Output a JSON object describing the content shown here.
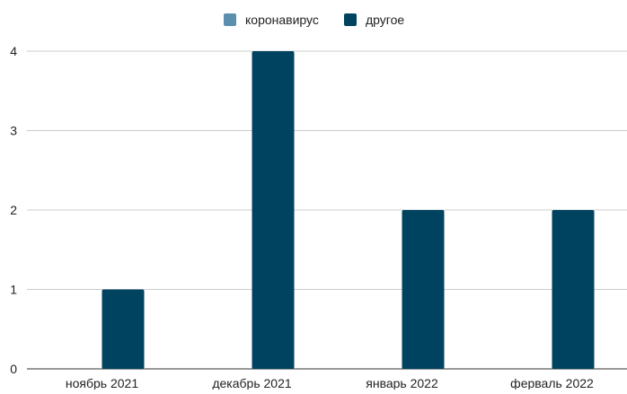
{
  "chart_data": {
    "type": "bar",
    "categories": [
      "ноябрь 2021",
      "декабрь 2021",
      "январь 2022",
      "ферваль 2022"
    ],
    "series": [
      {
        "name": "коронавирус",
        "color": "#5b8fad",
        "values": [
          0,
          0,
          0,
          0
        ]
      },
      {
        "name": "другое",
        "color": "#004360",
        "values": [
          1,
          4,
          2,
          2
        ]
      }
    ],
    "yticks": [
      "0",
      "1",
      "2",
      "3",
      "4"
    ],
    "ylim": [
      0,
      4
    ],
    "grid": true,
    "legend_position": "top-center",
    "title": "",
    "xlabel": "",
    "ylabel": ""
  }
}
